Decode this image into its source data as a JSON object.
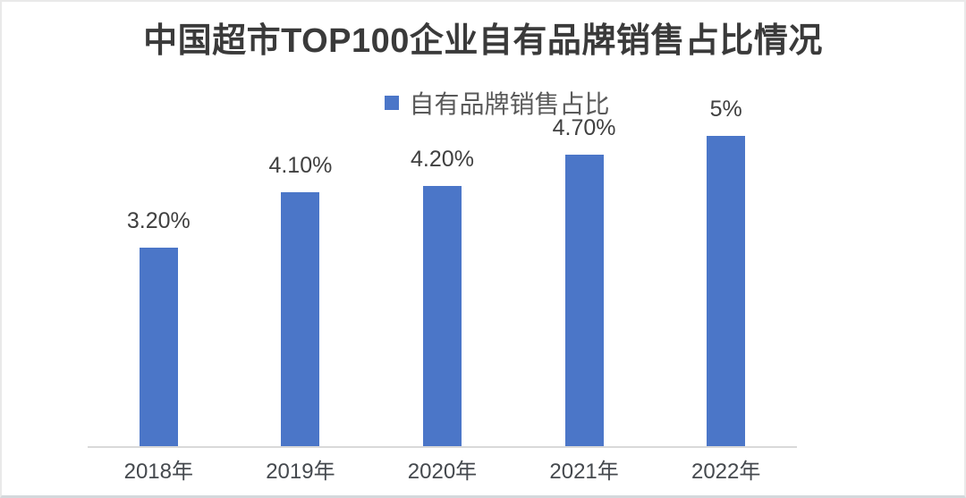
{
  "chart_data": {
    "type": "bar",
    "title": "中国超市TOP100企业自有品牌销售占比情况",
    "categories": [
      "2018年",
      "2019年",
      "2020年",
      "2021年",
      "2022年"
    ],
    "series": [
      {
        "name": "自有品牌销售占比",
        "values": [
          3.2,
          4.1,
          4.2,
          4.7,
          5.0
        ],
        "data_labels": [
          "3.20%",
          "4.10%",
          "4.20%",
          "4.70%",
          "5%"
        ],
        "color": "#4b76c8"
      }
    ],
    "xlabel": "",
    "ylabel": "",
    "ylim": [
      0,
      5.5
    ],
    "grid": false,
    "y_axis_visible": false,
    "legend_position": "top-center",
    "data_label_color": "#404040",
    "axis_label_color": "#45494e",
    "axis_line_color": "#d9d9d9",
    "title_color": "#3a3a3a"
  }
}
